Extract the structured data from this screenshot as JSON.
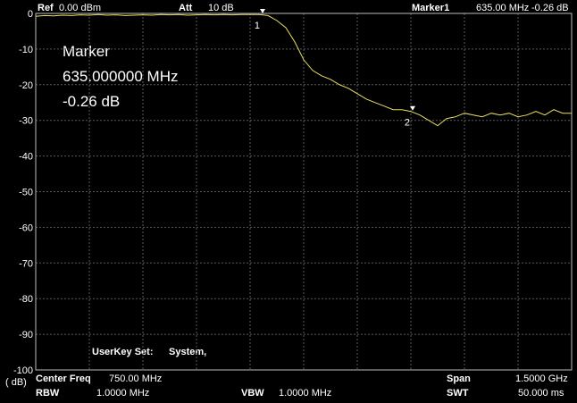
{
  "header": {
    "ref_label": "Ref",
    "ref_value": "0.00 dBm",
    "att_label": "Att",
    "att_value": "10 dB",
    "marker_label": "Marker1",
    "marker_freq": "635.00 MHz",
    "marker_level": "-0.26 dB"
  },
  "marker_box": {
    "title": "Marker",
    "freq": "635.000000 MHz",
    "level": "-0.26 dB"
  },
  "userkey": {
    "label": "UserKey Set:",
    "value": "System,"
  },
  "footer": {
    "y_unit": "( dB)",
    "center_label": "Center Freq",
    "center_value": "750.00 MHz",
    "span_label": "Span",
    "span_value": "1.5000 GHz",
    "rbw_label": "RBW",
    "rbw_value": "1.0000 MHz",
    "vbw_label": "VBW",
    "vbw_value": "1.0000 MHz",
    "swt_label": "SWT",
    "swt_value": "50.000 ms"
  },
  "chart_data": {
    "type": "line",
    "x": [
      0,
      25,
      50,
      75,
      100,
      125,
      150,
      175,
      200,
      225,
      250,
      275,
      300,
      325,
      350,
      375,
      400,
      425,
      450,
      475,
      500,
      525,
      550,
      575,
      600,
      625,
      650,
      675,
      700,
      725,
      750,
      775,
      800,
      825,
      850,
      875,
      900,
      925,
      950,
      975,
      1000,
      1025,
      1050,
      1075,
      1100,
      1125,
      1150,
      1175,
      1200,
      1225,
      1250,
      1275,
      1300,
      1325,
      1350,
      1375,
      1400,
      1425,
      1450,
      1475,
      1500
    ],
    "series": [
      {
        "name": null,
        "color": "#e8e060",
        "values": [
          -0.8,
          -0.6,
          -0.7,
          -0.5,
          -0.6,
          -0.4,
          -0.5,
          -0.3,
          -0.5,
          -0.4,
          -0.6,
          -0.5,
          -0.4,
          -0.5,
          -0.3,
          -0.4,
          -0.3,
          -0.5,
          -0.4,
          -0.3,
          -0.4,
          -0.3,
          -0.4,
          -0.3,
          -0.3,
          -0.3,
          -0.6,
          -2,
          -4,
          -8,
          -13,
          -16,
          -17.5,
          -18.5,
          -20,
          -21,
          -22.5,
          -24,
          -25,
          -26,
          -27,
          -27,
          -27.5,
          -28.5,
          -30,
          -31.5,
          -29.5,
          -29,
          -28,
          -28.5,
          -29,
          -28,
          -28.5,
          -28,
          -29,
          -28.5,
          -27.5,
          -28.5,
          -27,
          -28,
          -28
        ]
      }
    ],
    "markers": [
      {
        "label": "1",
        "x": 635,
        "y": -0.26
      },
      {
        "label": "2",
        "x": 1055,
        "y": -27.5
      }
    ],
    "xlim": [
      0,
      1500
    ],
    "ylim": [
      -100,
      0
    ],
    "yticks": [
      0,
      -10,
      -20,
      -30,
      -40,
      -50,
      -60,
      -70,
      -80,
      -90,
      -100
    ],
    "grid": true
  }
}
